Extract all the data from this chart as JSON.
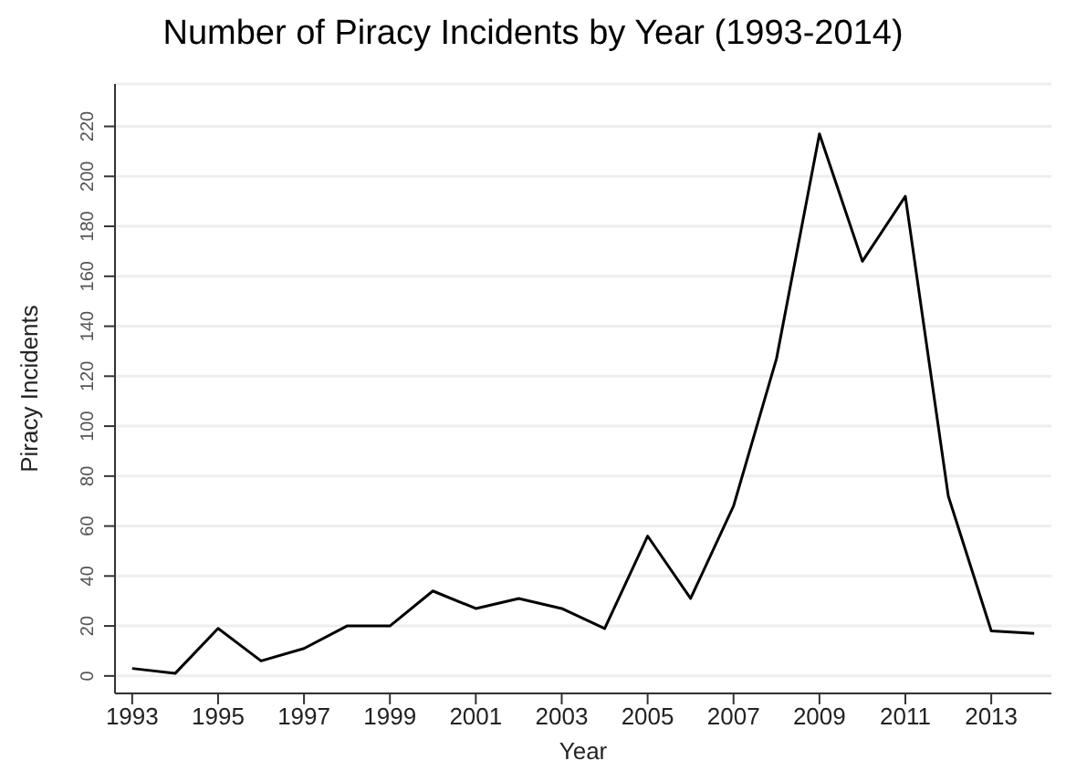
{
  "chart_data": {
    "type": "line",
    "title": "Number of Piracy Incidents by Year (1993-2014)",
    "xlabel": "Year",
    "ylabel": "Piracy Incidents",
    "x": [
      1993,
      1994,
      1995,
      1996,
      1997,
      1998,
      1999,
      2000,
      2001,
      2002,
      2003,
      2004,
      2005,
      2006,
      2007,
      2008,
      2009,
      2010,
      2011,
      2012,
      2013,
      2014
    ],
    "series": [
      {
        "color": "#000000",
        "values": [
          3,
          1,
          19,
          6,
          11,
          20,
          20,
          34,
          27,
          31,
          27,
          19,
          56,
          31,
          68,
          127,
          217,
          166,
          192,
          72,
          18,
          17
        ]
      }
    ],
    "xlim": [
      1992.6,
      2014.4
    ],
    "xticks": [
      1993,
      1995,
      1997,
      1999,
      2001,
      2003,
      2005,
      2007,
      2009,
      2011,
      2013
    ],
    "ylim": [
      -7,
      237
    ],
    "yticks": [
      0,
      20,
      40,
      60,
      80,
      100,
      120,
      140,
      160,
      180,
      200,
      220
    ],
    "grid": "y",
    "legend": false,
    "marker": "none",
    "line_style": "solid"
  }
}
